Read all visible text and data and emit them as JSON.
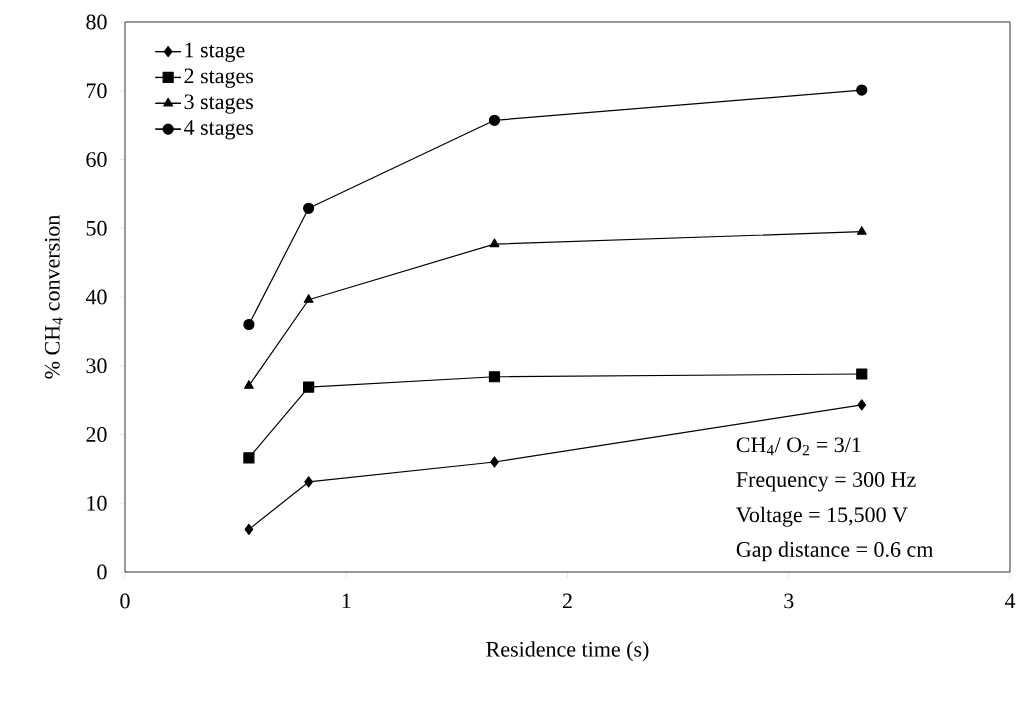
{
  "chart_data": {
    "type": "line",
    "xlabel": "Residence time (s)",
    "ylabel": "% CH$_{4}$ conversion",
    "x": [
      0.56,
      0.83,
      1.67,
      3.33
    ],
    "series": [
      {
        "name": "1 stage",
        "color": "#000000",
        "marker": "diamond",
        "values": [
          6.2,
          13.1,
          16.0,
          24.3
        ]
      },
      {
        "name": "2 stages",
        "color": "#000000",
        "marker": "square",
        "values": [
          16.6,
          26.9,
          28.4,
          28.8
        ]
      },
      {
        "name": "3 stages",
        "color": "#000000",
        "marker": "triangle",
        "values": [
          27.1,
          39.6,
          47.7,
          49.5
        ]
      },
      {
        "name": "4 stages",
        "color": "#000000",
        "marker": "circle",
        "values": [
          36.0,
          52.9,
          65.7,
          70.1
        ]
      }
    ],
    "xlim": [
      0,
      4
    ],
    "xticks": [
      0,
      1,
      2,
      3,
      4
    ],
    "ylim": [
      0,
      80
    ],
    "yticks": [
      0,
      10,
      20,
      30,
      40,
      50,
      60,
      70,
      80
    ],
    "grid": false,
    "legend": "top left",
    "line_style": "solid",
    "annotations": [
      "CH$_{4}$/ O$_{2}$ = 3/1",
      "Frequency = 300 Hz",
      "Voltage = 15,500 V",
      "Gap distance = 0.6 cm"
    ]
  }
}
